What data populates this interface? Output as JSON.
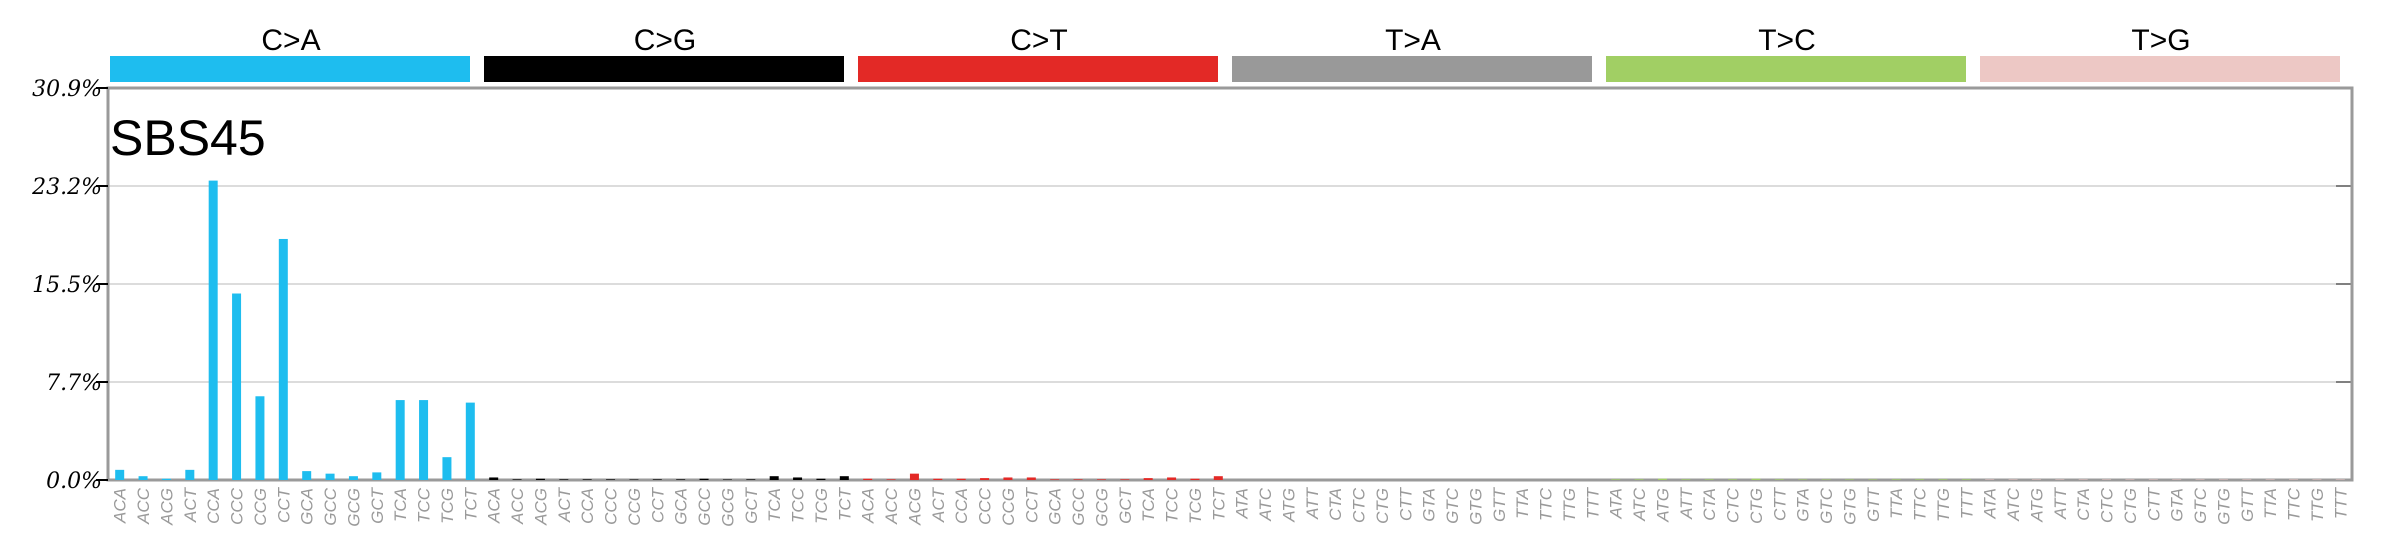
{
  "chart_data": {
    "type": "bar",
    "title": "SBS45",
    "ylim": [
      0,
      30.9
    ],
    "yticks": [
      "0.0%",
      "7.7%",
      "15.5%",
      "23.2%",
      "30.9%"
    ],
    "grid": true,
    "groups": [
      {
        "name": "C>A",
        "color": "#1ebdef",
        "contexts": [
          "ACA",
          "ACC",
          "ACG",
          "ACT",
          "CCA",
          "CCC",
          "CCG",
          "CCT",
          "GCA",
          "GCC",
          "GCG",
          "GCT",
          "TCA",
          "TCC",
          "TCG",
          "TCT"
        ],
        "values": [
          0.8,
          0.3,
          0.1,
          0.8,
          23.6,
          14.7,
          6.6,
          19.0,
          0.7,
          0.5,
          0.3,
          0.6,
          6.3,
          6.3,
          1.8,
          6.1
        ]
      },
      {
        "name": "C>G",
        "color": "#000000",
        "contexts": [
          "ACA",
          "ACC",
          "ACG",
          "ACT",
          "CCA",
          "CCC",
          "CCG",
          "CCT",
          "GCA",
          "GCC",
          "GCG",
          "GCT",
          "TCA",
          "TCC",
          "TCG",
          "TCT"
        ],
        "values": [
          0.2,
          0.05,
          0.1,
          0.05,
          0.05,
          0.05,
          0.02,
          0.05,
          0.05,
          0.1,
          0.03,
          0.05,
          0.3,
          0.2,
          0.1,
          0.3
        ]
      },
      {
        "name": "C>T",
        "color": "#e32926",
        "contexts": [
          "ACA",
          "ACC",
          "ACG",
          "ACT",
          "CCA",
          "CCC",
          "CCG",
          "CCT",
          "GCA",
          "GCC",
          "GCG",
          "GCT",
          "TCA",
          "TCC",
          "TCG",
          "TCT"
        ],
        "values": [
          0.1,
          0.05,
          0.5,
          0.1,
          0.1,
          0.15,
          0.2,
          0.2,
          0.05,
          0.05,
          0.05,
          0.05,
          0.15,
          0.2,
          0.1,
          0.3
        ]
      },
      {
        "name": "T>A",
        "color": "#999999",
        "contexts": [
          "ATA",
          "ATC",
          "ATG",
          "ATT",
          "CTA",
          "CTC",
          "CTG",
          "CTT",
          "GTA",
          "GTC",
          "GTG",
          "GTT",
          "TTA",
          "TTC",
          "TTG",
          "TTT"
        ],
        "values": [
          0.05,
          0.05,
          0.05,
          0.05,
          0.05,
          0.05,
          0.1,
          0.05,
          0.02,
          0.02,
          0.02,
          0.02,
          0.05,
          0.05,
          0.05,
          0.05
        ]
      },
      {
        "name": "T>C",
        "color": "#a1cf64",
        "contexts": [
          "ATA",
          "ATC",
          "ATG",
          "ATT",
          "CTA",
          "CTC",
          "CTG",
          "CTT",
          "GTA",
          "GTC",
          "GTG",
          "GTT",
          "TTA",
          "TTC",
          "TTG",
          "TTT"
        ],
        "values": [
          0.05,
          0.05,
          0.1,
          0.05,
          0.05,
          0.05,
          0.1,
          0.05,
          0.02,
          0.02,
          0.02,
          0.02,
          0.05,
          0.05,
          0.05,
          0.05
        ]
      },
      {
        "name": "T>G",
        "color": "#edc8c5",
        "contexts": [
          "ATA",
          "ATC",
          "ATG",
          "ATT",
          "CTA",
          "CTC",
          "CTG",
          "CTT",
          "GTA",
          "GTC",
          "GTG",
          "GTT",
          "TTA",
          "TTC",
          "TTG",
          "TTT"
        ],
        "values": [
          0.02,
          0.02,
          0.02,
          0.02,
          0.02,
          0.02,
          0.02,
          0.02,
          0.02,
          0.02,
          0.02,
          0.02,
          0.02,
          0.02,
          0.02,
          0.02
        ]
      }
    ]
  }
}
